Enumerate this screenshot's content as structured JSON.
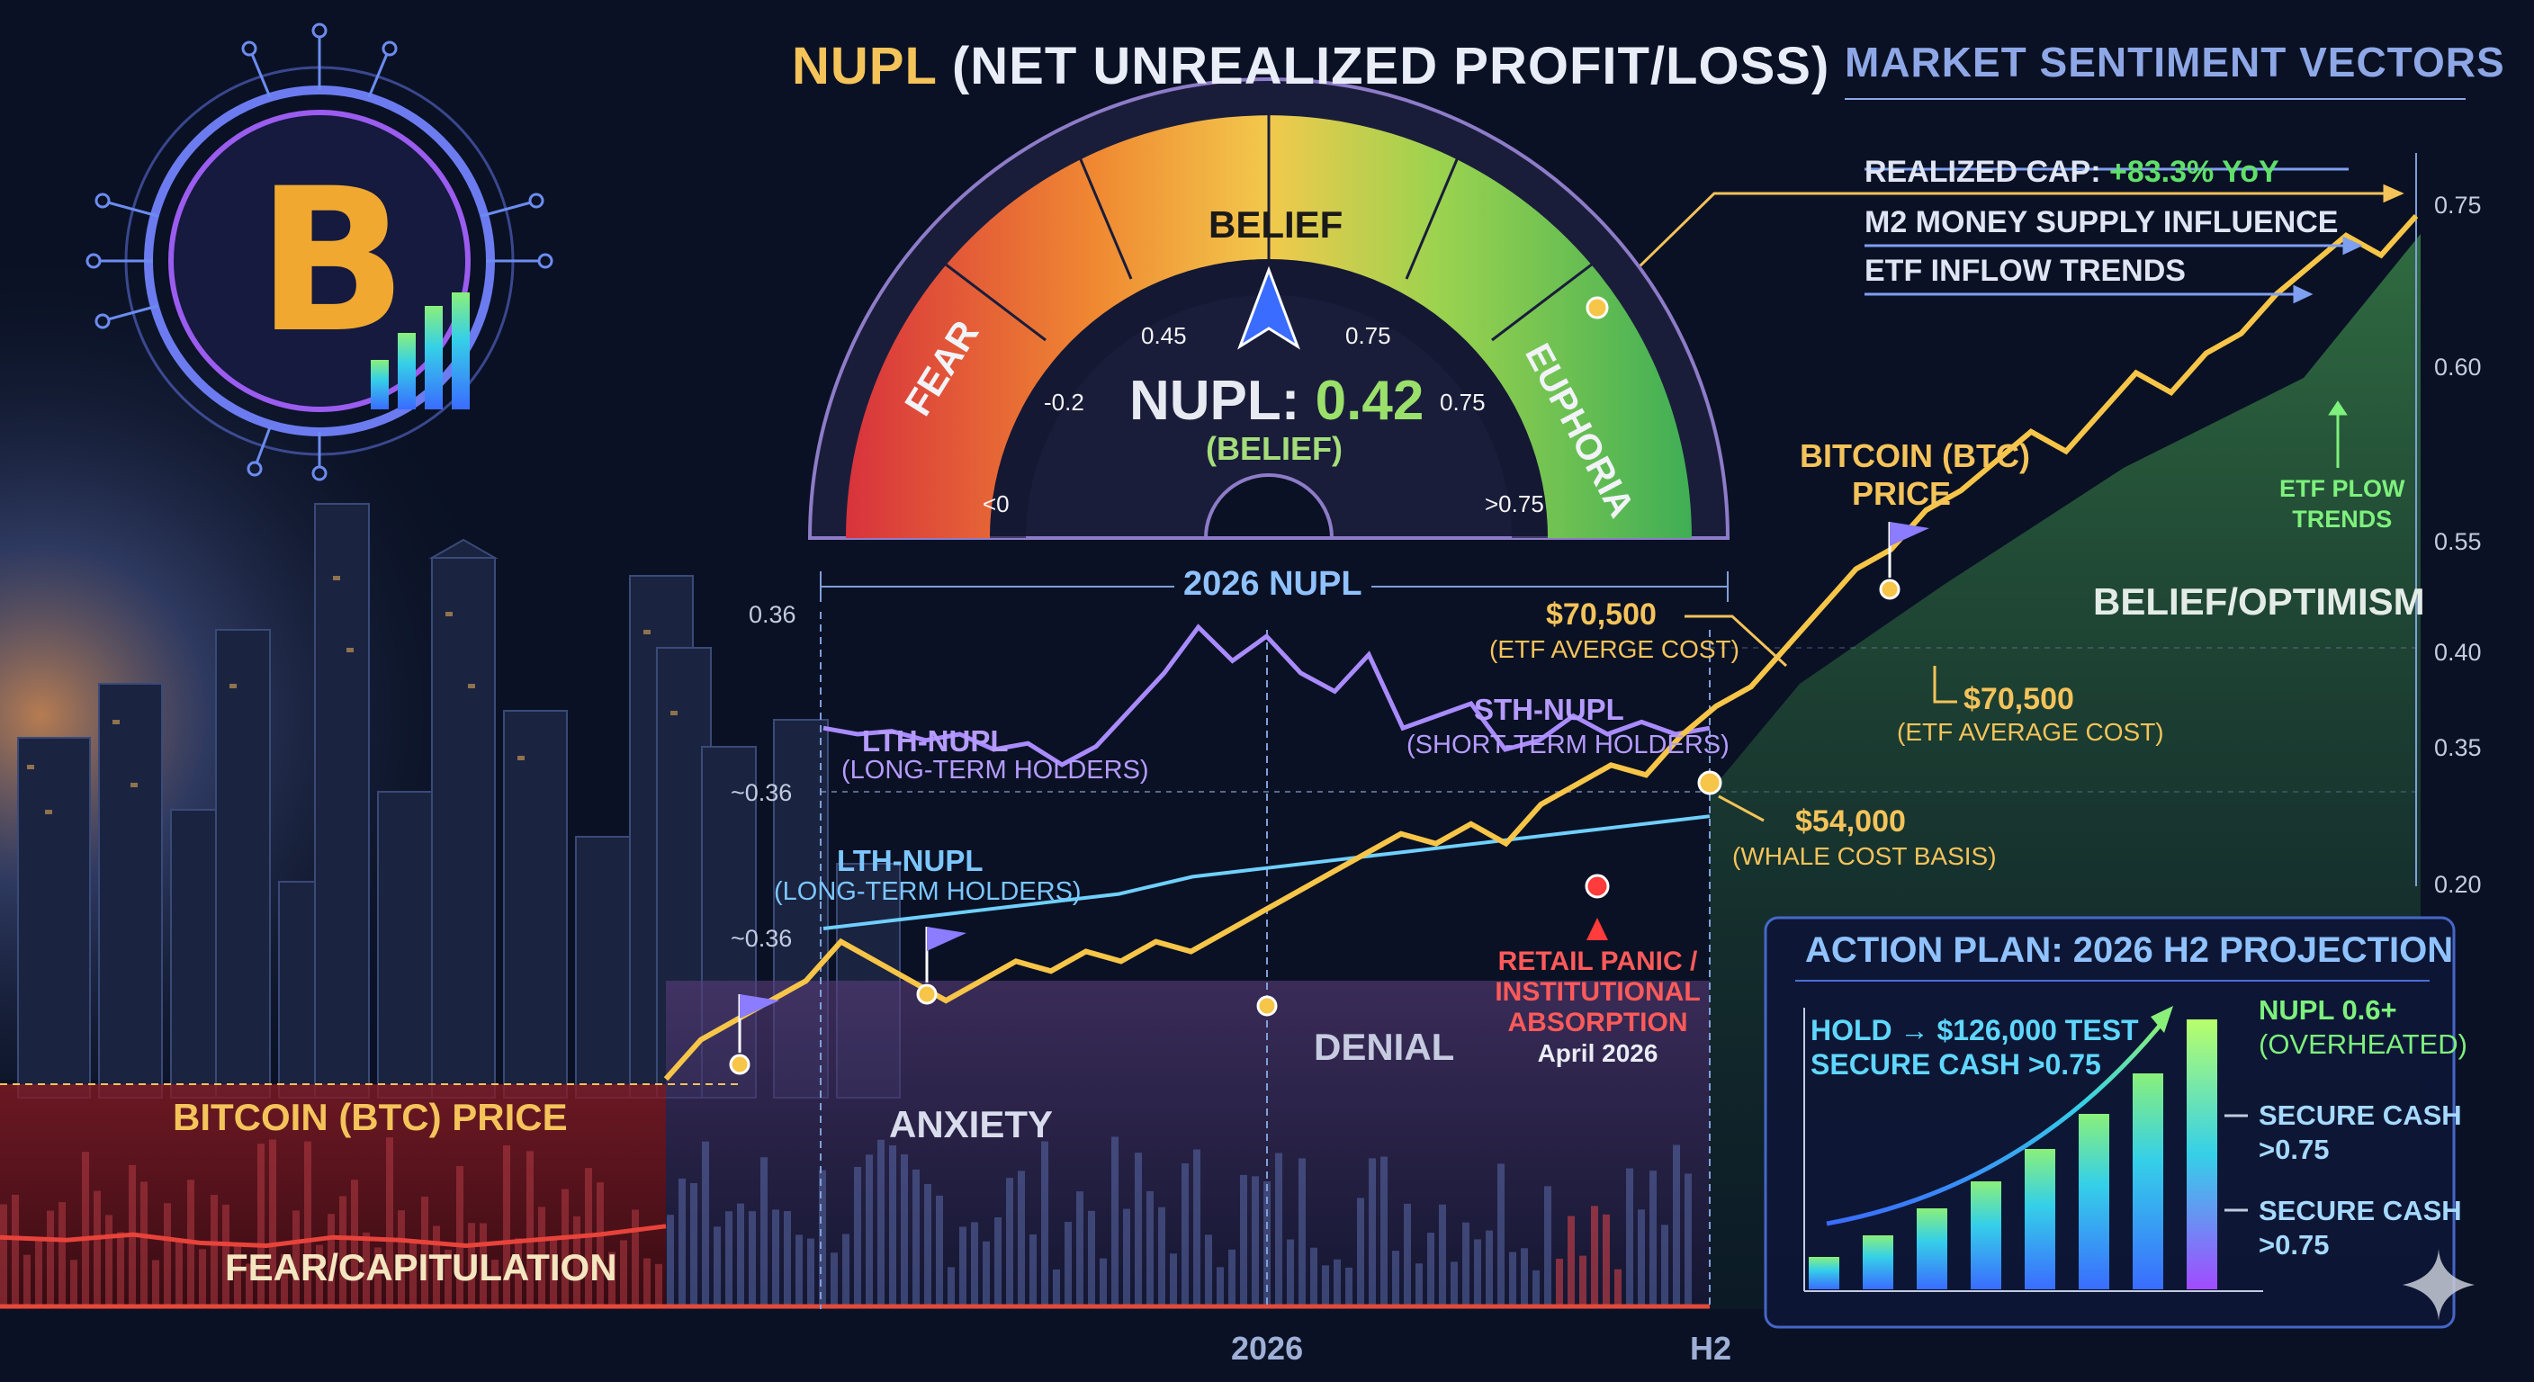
{
  "title": {
    "highlight": "NUPL",
    "rest": " (NET UNREALIZED PROFIT/LOSS)"
  },
  "sentiment_vectors": {
    "title": "MARKET SENTIMENT VECTORS",
    "items": [
      {
        "label": "REALIZED CAP: ",
        "value": "+83.3% YoY"
      },
      {
        "label": "M2 MONEY SUPPLY INFLUENCE"
      },
      {
        "label": "ETF INFLOW TRENDS"
      }
    ]
  },
  "gauge": {
    "zones": [
      "FEAR",
      "BELIEF",
      "EUPHORIA"
    ],
    "ticks": [
      "<0",
      "-0.2",
      "0.45",
      "0.75",
      "0.75",
      ">0.75"
    ],
    "reading_label": "NUPL: ",
    "reading_value": "0.42",
    "reading_sub": "(BELIEF)",
    "colors": {
      "fear": "#d8323c",
      "belief": "#f2c94c",
      "euphoria": "#3fae55"
    }
  },
  "chart_data": {
    "type": "line",
    "title": "2026 NUPL",
    "x_ticks": [
      "2026",
      "H2"
    ],
    "left_axis_ticks": [
      "0.36",
      "~0.36",
      "~0.36"
    ],
    "right_axis": {
      "ticks": [
        "0.75",
        "0.60",
        "0.55",
        "0.40",
        "0.35",
        "0.20"
      ],
      "ylim": [
        0.2,
        0.75
      ]
    },
    "series": [
      {
        "name": "Bitcoin (BTC) Price",
        "color": "#f7c548",
        "values": [
          0.08,
          0.07,
          0.09,
          0.06,
          0.05,
          0.08,
          0.07,
          0.05,
          0.07,
          0.09,
          0.12,
          0.16,
          0.18,
          0.2,
          0.22,
          0.26,
          0.24,
          0.22,
          0.2,
          0.22,
          0.24,
          0.23,
          0.25,
          0.24,
          0.26,
          0.25,
          0.27,
          0.29,
          0.31,
          0.33,
          0.35,
          0.37,
          0.36,
          0.38,
          0.36,
          0.4,
          0.42,
          0.44,
          0.43,
          0.47,
          0.5,
          0.52,
          0.56,
          0.6,
          0.64,
          0.66,
          0.7,
          0.72,
          0.75,
          0.78,
          0.76,
          0.8,
          0.84,
          0.82,
          0.86,
          0.88,
          0.92,
          0.95,
          0.98,
          0.96,
          1.0
        ]
      },
      {
        "name": "LTH-NUPL (Long-Term Holders)",
        "color": "#a98bff",
        "values": [
          0.62,
          0.6,
          0.61,
          0.58,
          0.6,
          0.55,
          0.57,
          0.5,
          0.56,
          0.68,
          0.8,
          0.95,
          0.84,
          0.92,
          0.8,
          0.74,
          0.86,
          0.62,
          0.66,
          0.7,
          0.55,
          0.58,
          0.66,
          0.6,
          0.64,
          0.6,
          0.62
        ]
      },
      {
        "name": "LTH-NUPL trend",
        "color": "#6fd0ff",
        "values": [
          0.35,
          0.36,
          0.37,
          0.38,
          0.39,
          0.4,
          0.41,
          0.42,
          0.43,
          0.45,
          0.47,
          0.48,
          0.49,
          0.5,
          0.51,
          0.52,
          0.53,
          0.54,
          0.55,
          0.56,
          0.57,
          0.58,
          0.59,
          0.6,
          0.61
        ]
      }
    ],
    "zones": [
      "FEAR/CAPITULATION",
      "ANXIETY",
      "DENIAL",
      "BELIEF/OPTIMISM"
    ],
    "price_label": "BITCOIN (BTC) PRICE",
    "price_label_2": "BITCOIN (BTC)",
    "price_label_2b": "PRICE",
    "lth_label": "LTH-NUPL",
    "lth_sub": "(LONG-TERM HOLDERS)",
    "sth_label": "STH-NUPL",
    "sth_sub": "(SHORT-TERM HOLDERS)",
    "annotations": [
      {
        "value": "$70,500",
        "sub": "(ETF AVERGE COST)"
      },
      {
        "value": "$70,500",
        "sub": "(ETF AVERAGE COST)"
      },
      {
        "value": "$54,000",
        "sub": "(WHALE COST BASIS)"
      }
    ],
    "retail_event": {
      "line1": "RETAIL PANIC /",
      "line2": "INSTITUTIONAL",
      "line3": "ABSORPTION",
      "date": "April 2026"
    },
    "etf_flow": {
      "line1": "ETF PLOW",
      "line2": "TRENDS"
    }
  },
  "action_plan": {
    "title": "ACTION PLAN: 2026 H2 PROJECTION",
    "left_line1": "HOLD → $126,000 TEST",
    "left_line2": "SECURE CASH >0.75",
    "right_items": [
      {
        "l1": "NUPL 0.6+",
        "l2": "(OVERHEATED)"
      },
      {
        "l1": "SECURE CASH",
        "l2": ">0.75"
      },
      {
        "l1": "SECURE CASH",
        "l2": ">0.75"
      }
    ],
    "bars": [
      0.12,
      0.2,
      0.3,
      0.4,
      0.52,
      0.65,
      0.8,
      1.0
    ]
  },
  "bitcoin_symbol": "B"
}
